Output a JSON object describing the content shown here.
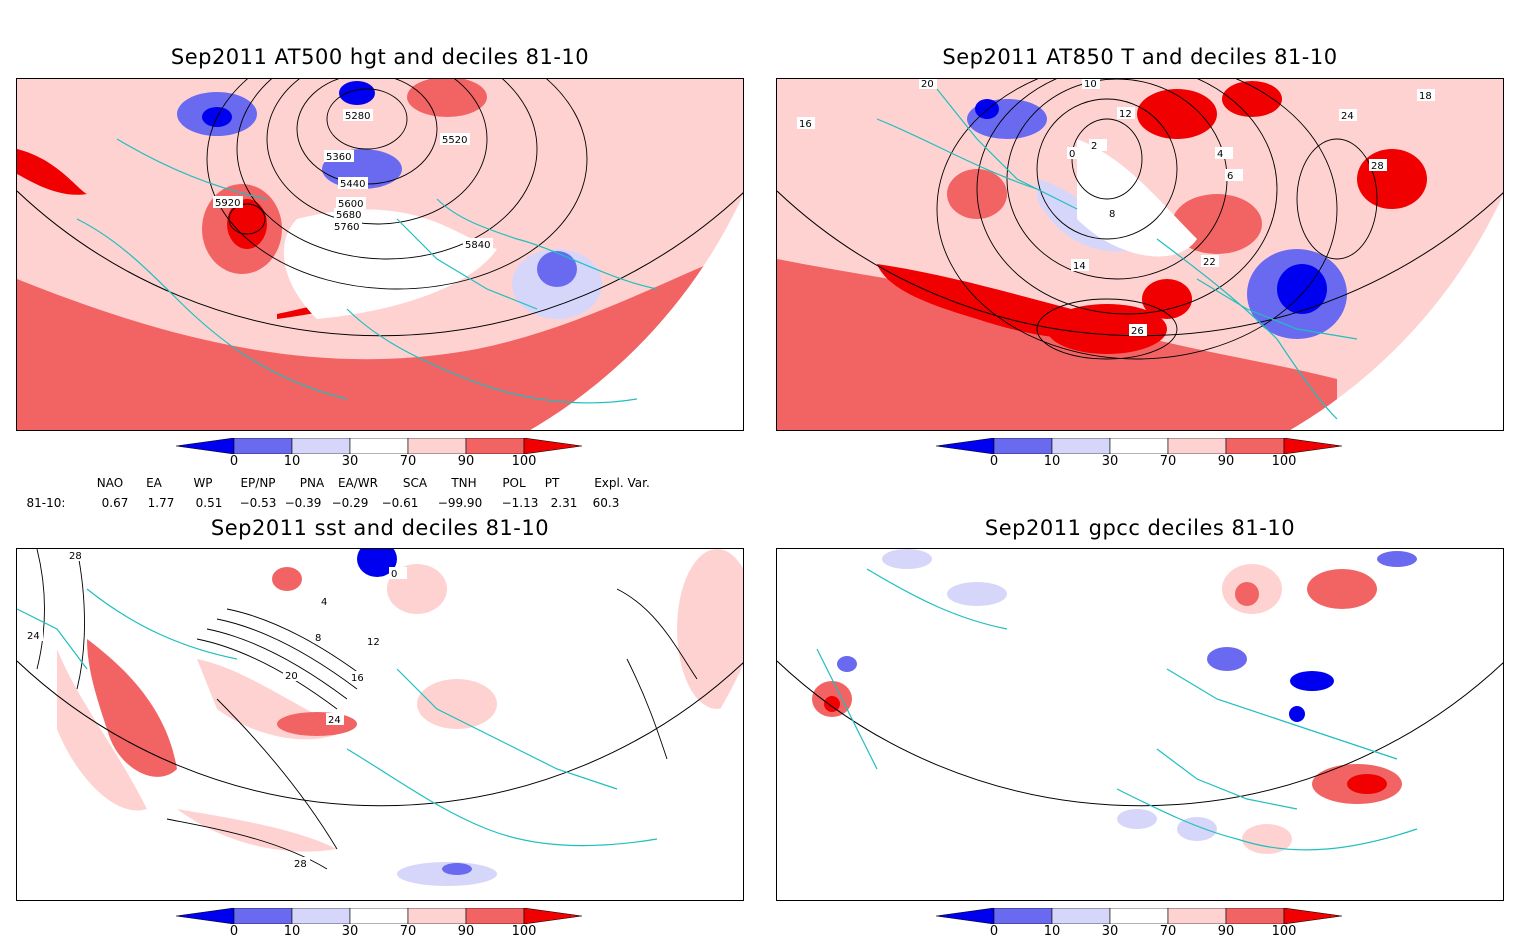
{
  "panels": [
    {
      "id": "hgt",
      "title": "Sep2011 AT500 hgt and deciles 81-10",
      "contour_labels": [
        "5280",
        "5520",
        "5360",
        "5440",
        "5600",
        "5680",
        "5760",
        "5840",
        "5920"
      ]
    },
    {
      "id": "t850",
      "title": "Sep2011 AT850 T and deciles 81-10",
      "contour_labels": [
        "20",
        "10",
        "12",
        "18",
        "16",
        "0",
        "2",
        "4",
        "6",
        "8",
        "22",
        "24",
        "26",
        "28",
        "14"
      ]
    },
    {
      "id": "sst",
      "title": "Sep2011 sst and deciles 81-10",
      "contour_labels": [
        "28",
        "24",
        "12",
        "16",
        "20",
        "8",
        "4",
        "0",
        "28",
        "24"
      ]
    },
    {
      "id": "gpcc",
      "title": "Sep2011 gpcc deciles 81-10",
      "contour_labels": []
    }
  ],
  "colorbar": {
    "ticks": [
      "0",
      "10",
      "30",
      "70",
      "90",
      "100"
    ],
    "colors": [
      "#0000f0",
      "#6a6af0",
      "#d6d6fa",
      "#ffffff",
      "#ffd2d2",
      "#f26464",
      "#f00000"
    ]
  },
  "indices": {
    "row_label": "81-10:",
    "headers": [
      "NAO",
      "EA",
      "WP",
      "EP/NP",
      "PNA",
      "EA/WR",
      "SCA",
      "TNH",
      "POL",
      "PT",
      "Expl. Var."
    ],
    "values": [
      "0.67",
      "1.77",
      "0.51",
      "−0.53",
      "−0.39",
      "−0.29",
      "−0.61",
      "−99.90",
      "−1.13",
      "2.31",
      "60.3"
    ]
  }
}
